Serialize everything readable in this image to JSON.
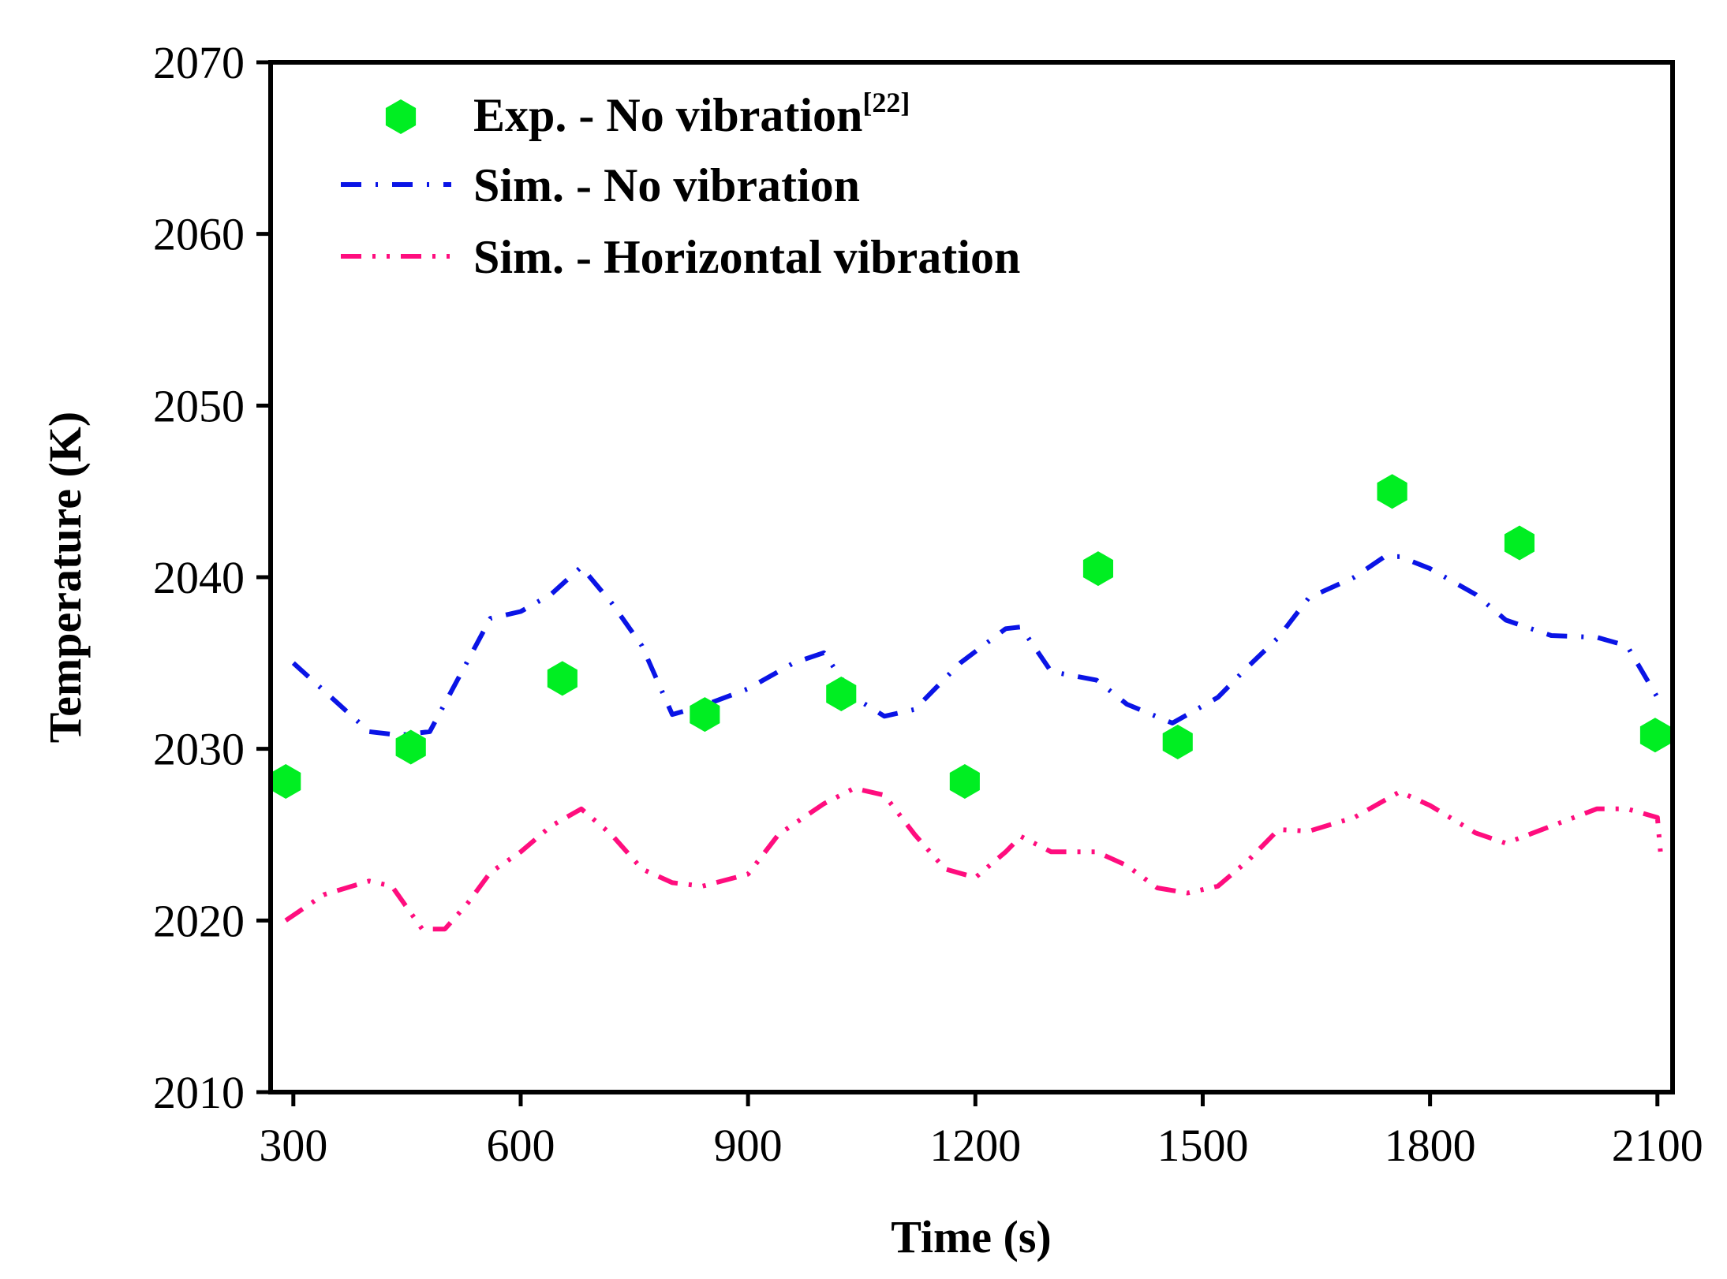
{
  "chart_data": {
    "type": "line",
    "xlabel": "Time (s)",
    "ylabel": "Temperature (K)",
    "xlim": [
      270,
      2120
    ],
    "ylim": [
      2010,
      2070
    ],
    "xticks": [
      300,
      600,
      900,
      1200,
      1500,
      1800,
      2100
    ],
    "yticks": [
      2010,
      2020,
      2030,
      2040,
      2050,
      2060,
      2070
    ],
    "grid": false,
    "legend_position": "top-left",
    "series": [
      {
        "name": "Exp. - No vibration",
        "name_superscript": "[22]",
        "kind": "scatter",
        "marker": "hexagon",
        "color": "#00ee22",
        "x": [
          290,
          455,
          655,
          843,
          1023,
          1186,
          1362,
          1467,
          1750,
          1918,
          2097
        ],
        "y": [
          2028.1,
          2030.1,
          2034.1,
          2032.0,
          2033.2,
          2028.1,
          2040.5,
          2030.4,
          2045.0,
          2042.0,
          2030.8
        ]
      },
      {
        "name": "Sim. - No vibration",
        "kind": "line",
        "style": "dash-dot",
        "color": "#0a14e6",
        "x": [
          300,
          400,
          440,
          480,
          560,
          600,
          640,
          680,
          720,
          760,
          800,
          840,
          900,
          960,
          1000,
          1040,
          1080,
          1120,
          1180,
          1240,
          1260,
          1300,
          1360,
          1400,
          1460,
          1520,
          1560,
          1600,
          1640,
          1700,
          1740,
          1760,
          1800,
          1860,
          1900,
          1960,
          2020,
          2060,
          2100
        ],
        "y": [
          2035.0,
          2031.0,
          2030.8,
          2031.0,
          2037.6,
          2038.0,
          2039.0,
          2040.6,
          2038.5,
          2036.0,
          2032.0,
          2032.5,
          2033.5,
          2035.0,
          2035.6,
          2033.0,
          2031.9,
          2032.3,
          2035.0,
          2037.0,
          2037.1,
          2034.5,
          2034.0,
          2032.6,
          2031.5,
          2033.0,
          2034.8,
          2036.5,
          2038.8,
          2040.0,
          2041.2,
          2041.2,
          2040.5,
          2039.0,
          2037.5,
          2036.6,
          2036.5,
          2036.0,
          2033.0
        ]
      },
      {
        "name": "Sim. - Horizontal vibration",
        "kind": "line",
        "style": "dash-dot-dot",
        "color": "#ff0d7e",
        "x": [
          290,
          340,
          400,
          430,
          470,
          500,
          530,
          560,
          600,
          640,
          680,
          720,
          760,
          800,
          840,
          900,
          940,
          1000,
          1040,
          1080,
          1120,
          1160,
          1200,
          1240,
          1260,
          1300,
          1360,
          1400,
          1440,
          1480,
          1520,
          1560,
          1600,
          1640,
          1700,
          1760,
          1800,
          1860,
          1900,
          1960,
          2020,
          2060,
          2100,
          2105
        ],
        "y": [
          2020.0,
          2021.5,
          2022.3,
          2022.0,
          2019.5,
          2019.5,
          2021.0,
          2022.8,
          2024.0,
          2025.5,
          2026.5,
          2025.0,
          2023.0,
          2022.2,
          2022.0,
          2022.7,
          2025.0,
          2026.8,
          2027.7,
          2027.3,
          2025.0,
          2023.0,
          2022.5,
          2024.0,
          2024.9,
          2024.0,
          2024.0,
          2023.2,
          2021.9,
          2021.6,
          2022.0,
          2023.5,
          2025.3,
          2025.2,
          2026.0,
          2027.5,
          2026.7,
          2025.1,
          2024.5,
          2025.5,
          2026.5,
          2026.5,
          2026.0,
          2023.5
        ]
      }
    ]
  }
}
